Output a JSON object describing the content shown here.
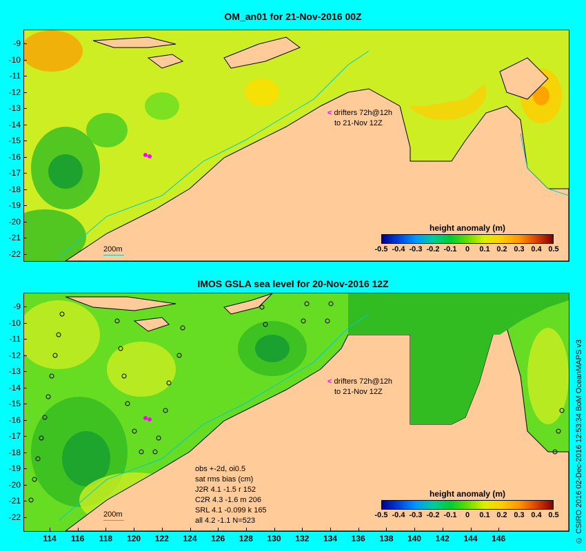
{
  "map1": {
    "title": "OM_an01 for 21-Nov-2016 00Z",
    "drifters": [
      "drifters 72h@12h",
      "to 21-Nov 12Z"
    ],
    "scale_label": "200m"
  },
  "map2": {
    "title": "IMOS GSLA sea level  for 20-Nov-2016 12Z",
    "drifters": [
      "drifters 72h@12h",
      "to 21-Nov 12Z"
    ],
    "scale_label": "200m",
    "stats": [
      "obs +-2d, oi0.5",
      "sat rms bias (cm)",
      "J2R   4.1  -1.5  r 152",
      "C2R   4.3  -1.6  m 206",
      "SRL   4.1  -0.099  k 165",
      "all   4.2  -1.1  N=523"
    ]
  },
  "colorbar": {
    "title": "height anomaly (m)",
    "ticks": [
      "-0.5",
      "-0.4",
      "-0.3",
      "-0.2",
      "-0.1",
      "0",
      "0.1",
      "0.2",
      "0.3",
      "0.4",
      "0.5"
    ]
  },
  "y_ticks": [
    "-9",
    "-10",
    "-11",
    "-12",
    "-13",
    "-14",
    "-15",
    "-16",
    "-17",
    "-18",
    "-19",
    "-20",
    "-21",
    "-22"
  ],
  "x_ticks": [
    "114",
    "116",
    "118",
    "120",
    "122",
    "124",
    "126",
    "128",
    "130",
    "132",
    "134",
    "136",
    "138",
    "140",
    "142",
    "144",
    "146"
  ],
  "credit": "© CSIRO 2016  02-Dec-2016 12:53:34 BoM OceanMAPS v3",
  "colors": {
    "background": "#00ffff",
    "land": "#ffcc99",
    "ocean_base": "#ccee22"
  }
}
